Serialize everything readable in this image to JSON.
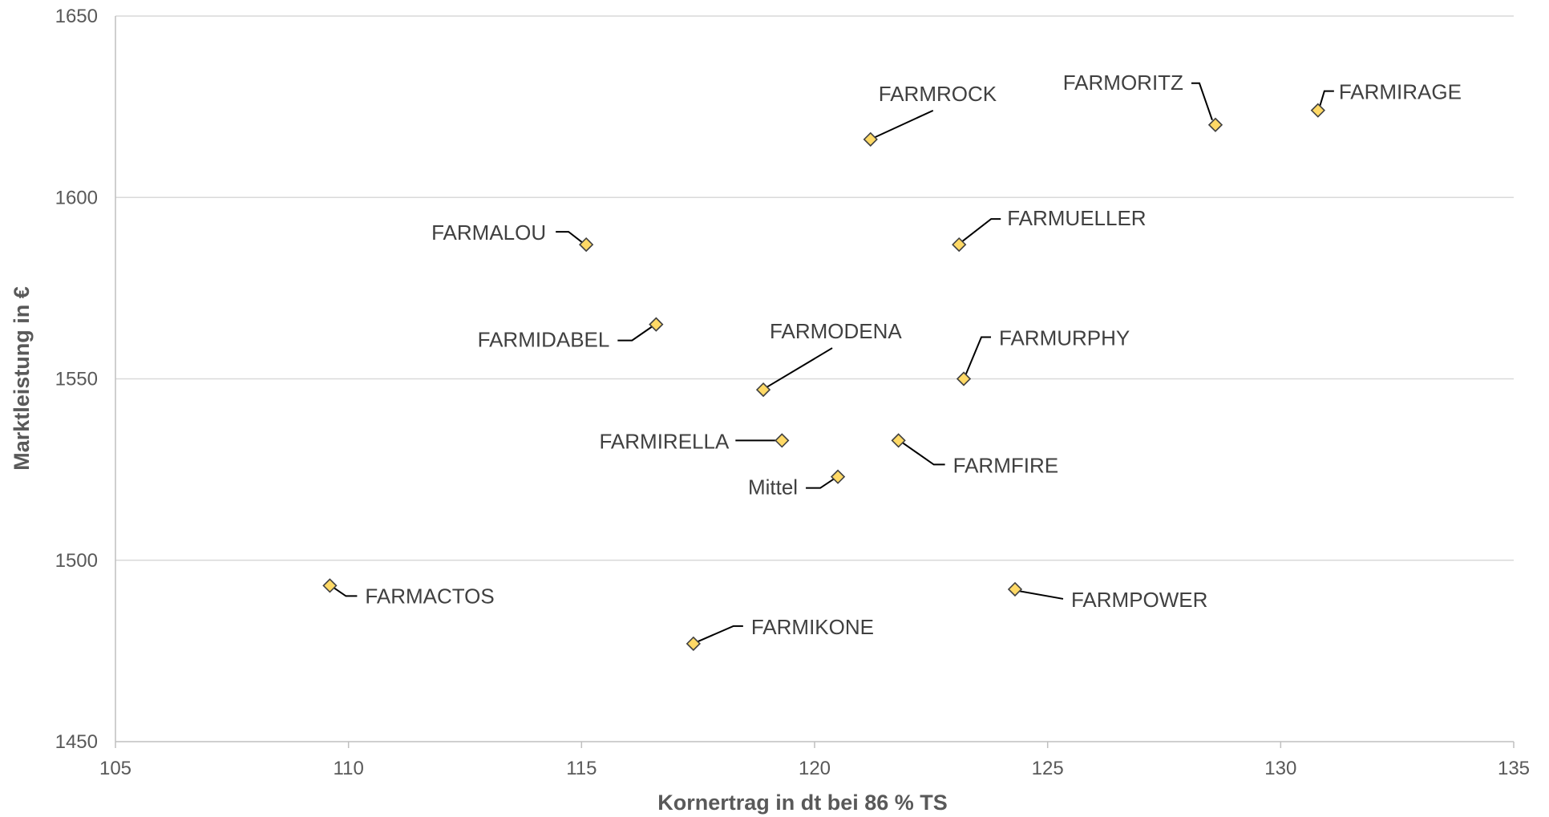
{
  "chart_data": {
    "type": "scatter",
    "xlabel": "Kornertrag in dt bei 86 % TS",
    "ylabel": "Marktleistung in €",
    "xlim": [
      105,
      135
    ],
    "ylim": [
      1450,
      1650
    ],
    "xticks": [
      105,
      110,
      115,
      120,
      125,
      130,
      135
    ],
    "yticks": [
      1450,
      1500,
      1550,
      1600,
      1650
    ],
    "grid": "horizontal",
    "marker": "diamond",
    "marker_color": "#FFD966",
    "marker_edge_color": "#404040",
    "points": [
      {
        "label": "FARMROCK",
        "x": 121.2,
        "y": 1616
      },
      {
        "label": "FARMORITZ",
        "x": 128.6,
        "y": 1620
      },
      {
        "label": "FARMIRAGE",
        "x": 130.8,
        "y": 1624
      },
      {
        "label": "FARMALOU",
        "x": 115.1,
        "y": 1587
      },
      {
        "label": "FARMUELLER",
        "x": 123.1,
        "y": 1587
      },
      {
        "label": "FARMIDABEL",
        "x": 116.6,
        "y": 1565
      },
      {
        "label": "FARMODENA",
        "x": 118.9,
        "y": 1547
      },
      {
        "label": "FARMURPHY",
        "x": 123.2,
        "y": 1550
      },
      {
        "label": "FARMIRELLA",
        "x": 119.3,
        "y": 1533
      },
      {
        "label": "FARMFIRE",
        "x": 121.8,
        "y": 1533
      },
      {
        "label": "Mittel",
        "x": 120.5,
        "y": 1523
      },
      {
        "label": "FARMACTOS",
        "x": 109.6,
        "y": 1493
      },
      {
        "label": "FARMPOWER",
        "x": 124.3,
        "y": 1492
      },
      {
        "label": "FARMIKONE",
        "x": 117.4,
        "y": 1477
      }
    ]
  }
}
